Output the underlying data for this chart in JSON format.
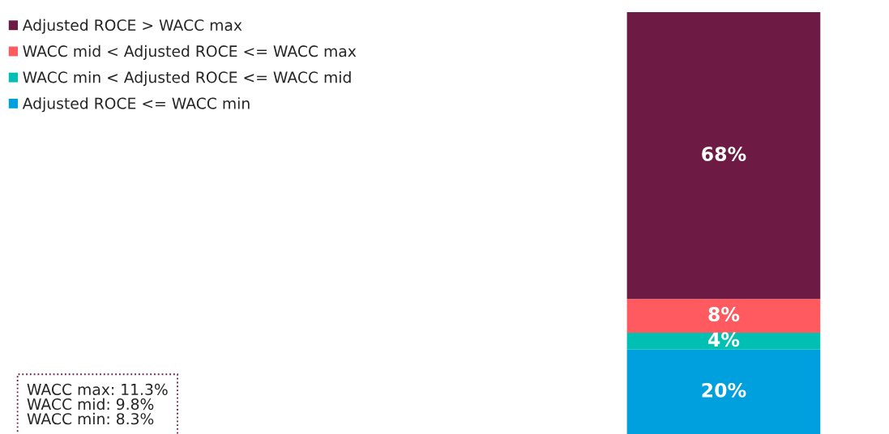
{
  "chart_data": {
    "type": "bar",
    "stacked": true,
    "categories": [
      null
    ],
    "series": [
      {
        "name": "Adjusted ROCE <= WACC min",
        "color": "#00a0df",
        "values": [
          20
        ],
        "value_labels": [
          "20%"
        ]
      },
      {
        "name": "WACC min < Adjusted ROCE <= WACC mid",
        "color": "#00bfb3",
        "values": [
          4
        ],
        "value_labels": [
          "4%"
        ]
      },
      {
        "name": "WACC mid < Adjusted ROCE <= WACC max",
        "color": "#ff5a5f",
        "values": [
          8
        ],
        "value_labels": [
          "8%"
        ]
      },
      {
        "name": "Adjusted ROCE > WACC max",
        "color": "#6d1b45",
        "values": [
          68
        ],
        "value_labels": [
          "68%"
        ]
      }
    ],
    "legend": "top left",
    "annotations": [
      "WACC max: 11.3%",
      "WACC mid: 9.8%",
      "WACC min: 8.3%"
    ]
  }
}
